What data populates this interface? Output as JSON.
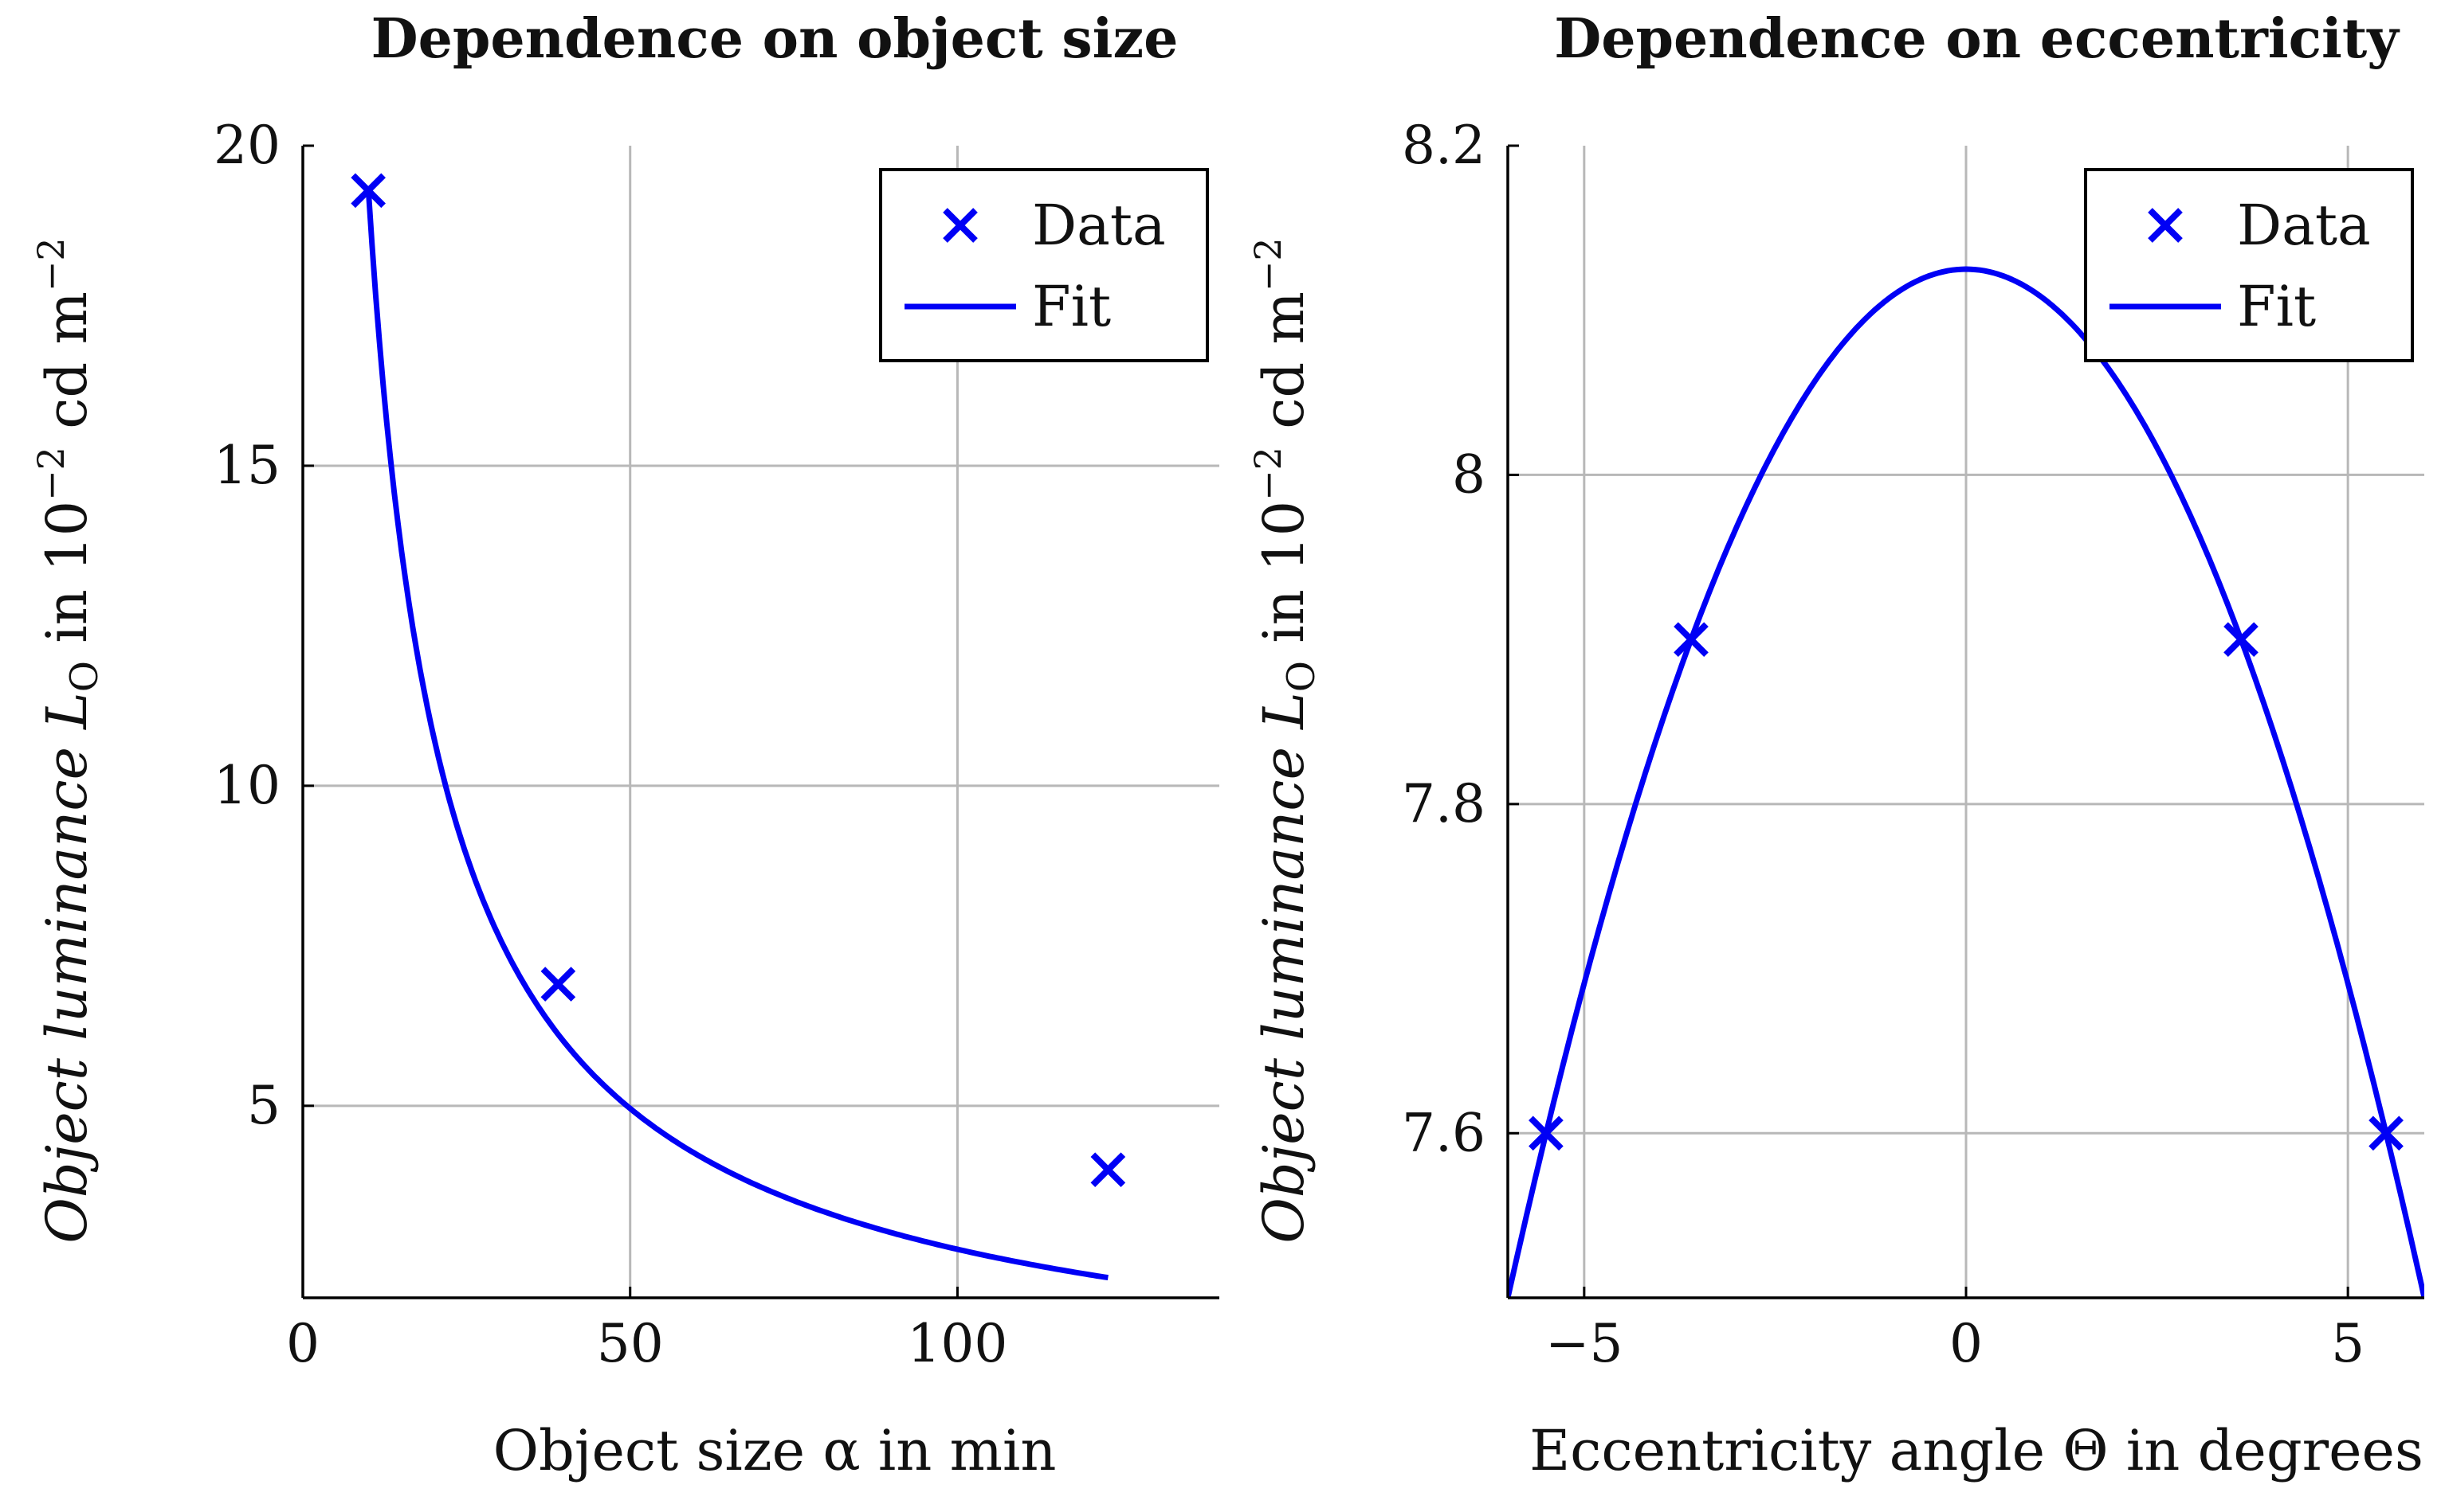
{
  "colors": {
    "series": "#0000f5",
    "grid": "#b8b8b8",
    "axis": "#000000"
  },
  "chart_data": [
    {
      "type": "line",
      "title": "Dependence on object size",
      "xlabel": "Object size α in min",
      "ylabel": "Object luminance L",
      "ylabel_sub": "O",
      "ylabel_mid": " in 10",
      "ylabel_sup1": "−2",
      "ylabel_mid2": " cd m",
      "ylabel_sup2": "−2",
      "xlim": [
        0,
        140
      ],
      "ylim": [
        2,
        20
      ],
      "xticks": [
        0,
        50,
        100
      ],
      "xtick_labels": [
        "0",
        "50",
        "100"
      ],
      "yticks": [
        5,
        10,
        15,
        20
      ],
      "ytick_labels": [
        "5",
        "10",
        "15",
        "20"
      ],
      "grid": true,
      "legend": {
        "position": "top-right",
        "entries": [
          "Data",
          "Fit"
        ]
      },
      "series": [
        {
          "name": "Data",
          "kind": "scatter",
          "marker": "x",
          "x": [
            10,
            39,
            123
          ],
          "y": [
            19.3,
            6.9,
            4.0
          ]
        },
        {
          "name": "Fit",
          "kind": "line",
          "model": "y = a / x^p",
          "a": 135.6,
          "p": 0.8458,
          "x_range": [
            10,
            123
          ]
        }
      ]
    },
    {
      "type": "line",
      "title": "Dependence on eccentricity",
      "xlabel": "Eccentricity angle Θ in degrees",
      "ylabel": "Object luminance L",
      "ylabel_sub": "O",
      "ylabel_mid": " in 10",
      "ylabel_sup1": "−2",
      "ylabel_mid2": " cd m",
      "ylabel_sup2": "−2",
      "xlim": [
        -6,
        6
      ],
      "ylim": [
        7.5,
        8.2
      ],
      "xticks": [
        -5,
        0,
        5
      ],
      "xtick_labels": [
        "−5",
        "0",
        "5"
      ],
      "yticks": [
        7.6,
        7.8,
        8,
        8.2
      ],
      "ytick_labels": [
        "7.6",
        "7.8",
        "8",
        "8.2"
      ],
      "grid": true,
      "legend": {
        "position": "top-right",
        "entries": [
          "Data",
          "Fit"
        ]
      },
      "series": [
        {
          "name": "Data",
          "kind": "scatter",
          "marker": "x",
          "x": [
            -5.5,
            -3.6,
            3.6,
            5.5
          ],
          "y": [
            7.6,
            7.9,
            7.9,
            7.6
          ]
        },
        {
          "name": "Fit",
          "kind": "line",
          "model": "y = c - k x^2",
          "c": 8.125,
          "k": 0.01736,
          "x_range": [
            -6,
            6
          ]
        }
      ]
    }
  ]
}
